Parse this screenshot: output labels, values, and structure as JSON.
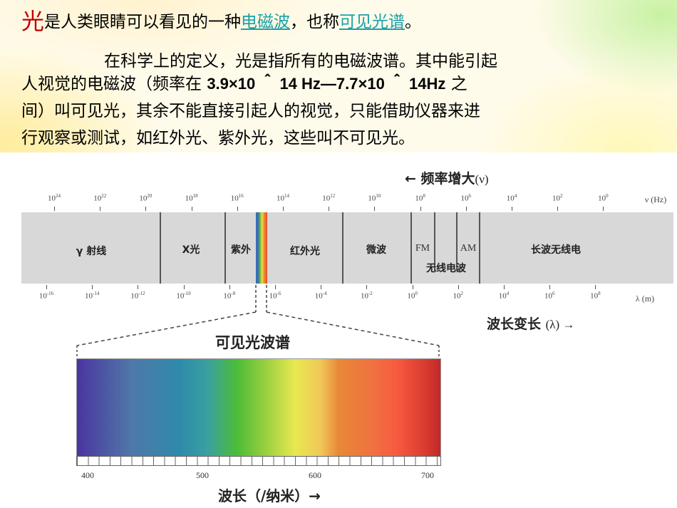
{
  "paragraph": {
    "line1": {
      "big_char": "光",
      "text_a": "是人类眼睛可以看见的一种",
      "link1": "电磁波",
      "text_b": "，也称",
      "link2": "可见光谱",
      "text_c": "。"
    },
    "line2": "在科学上的定义，光是指所有的电磁波谱。其中能引起",
    "line3": {
      "text_a": "人视觉的电磁波（频率在 ",
      "num": "3.9×10 ＾ 14  Hz—7.7×10 ＾ 14Hz",
      "text_b": " 之"
    },
    "line4": "间）叫可见光，其余不能直接引起人的视觉，只能借助仪器来进",
    "line5": "行观察或测试，如红外光、紫外光，这些叫不可见光。"
  },
  "spectrum": {
    "freq_title": "← 频率增大",
    "freq_title_unit": "(ν)",
    "freq_axis_label": "ν (Hz)",
    "freq_ticks": [
      {
        "base": "10",
        "exp": "24"
      },
      {
        "base": "10",
        "exp": "22"
      },
      {
        "base": "10",
        "exp": "20"
      },
      {
        "base": "10",
        "exp": "18"
      },
      {
        "base": "10",
        "exp": "16"
      },
      {
        "base": "10",
        "exp": "14"
      },
      {
        "base": "10",
        "exp": "12"
      },
      {
        "base": "10",
        "exp": "10"
      },
      {
        "base": "10",
        "exp": "8"
      },
      {
        "base": "10",
        "exp": "6"
      },
      {
        "base": "10",
        "exp": "4"
      },
      {
        "base": "10",
        "exp": "2"
      },
      {
        "base": "10",
        "exp": "0"
      }
    ],
    "bands": {
      "gamma": "γ 射线",
      "xray": "X光",
      "uv": "紫外",
      "ir": "红外光",
      "microwave": "微波",
      "fm": "FM",
      "am": "AM",
      "radio": "无线电波",
      "longwave": "长波无线电"
    },
    "wl_axis_label": "λ (m)",
    "wl_ticks": [
      {
        "base": "10",
        "exp": "-16"
      },
      {
        "base": "10",
        "exp": "-14"
      },
      {
        "base": "10",
        "exp": "-12"
      },
      {
        "base": "10",
        "exp": "-10"
      },
      {
        "base": "10",
        "exp": "-8"
      },
      {
        "base": "10",
        "exp": "-6"
      },
      {
        "base": "10",
        "exp": "-4"
      },
      {
        "base": "10",
        "exp": "-2"
      },
      {
        "base": "10",
        "exp": "0"
      },
      {
        "base": "10",
        "exp": "2"
      },
      {
        "base": "10",
        "exp": "4"
      },
      {
        "base": "10",
        "exp": "6"
      },
      {
        "base": "10",
        "exp": "8"
      }
    ],
    "wl_title": "波长变长",
    "wl_title_unit": "(λ) →"
  },
  "visible": {
    "title": "可见光波谱",
    "nm_labels": [
      "400",
      "500",
      "600",
      "700"
    ],
    "axis_title": "波长（/纳米）→"
  },
  "colors": {
    "highlight_red": "#c00000",
    "link_teal": "#1aa0a8",
    "band_gray": "#d8d8d8"
  }
}
